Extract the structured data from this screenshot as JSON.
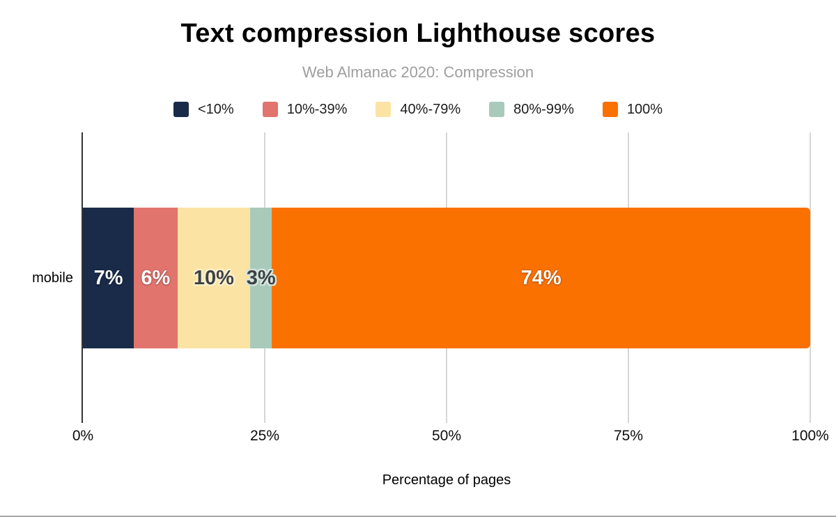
{
  "header": {
    "title": "Text compression Lighthouse scores",
    "subtitle": "Web Almanac 2020: Compression"
  },
  "chart_data": {
    "type": "bar",
    "orientation": "horizontal",
    "stacked": true,
    "title": "Text compression Lighthouse scores",
    "subtitle": "Web Almanac 2020: Compression",
    "categories": [
      "mobile"
    ],
    "series": [
      {
        "name": "<10%",
        "values": [
          7
        ],
        "data_label": "7%",
        "color": "#1a2b49",
        "label_theme": "light"
      },
      {
        "name": "10%-39%",
        "values": [
          6
        ],
        "data_label": "6%",
        "color": "#e1746d",
        "label_theme": "light"
      },
      {
        "name": "40%-79%",
        "values": [
          10
        ],
        "data_label": "10%",
        "color": "#fbe3a4",
        "label_theme": "dark",
        "halo": "#fdf0cd"
      },
      {
        "name": "80%-99%",
        "values": [
          3
        ],
        "data_label": "3%",
        "color": "#a9cabb",
        "label_theme": "dark",
        "halo": "#d6e6dd"
      },
      {
        "name": "100%",
        "values": [
          74
        ],
        "data_label": "74%",
        "color": "#fa7100",
        "label_theme": "light"
      }
    ],
    "xlabel": "Percentage of pages",
    "ylabel": "",
    "xlim": [
      0,
      100
    ],
    "x_ticks": [
      {
        "pos": 0,
        "label": "0%"
      },
      {
        "pos": 25,
        "label": "25%"
      },
      {
        "pos": 50,
        "label": "50%"
      },
      {
        "pos": 75,
        "label": "75%"
      },
      {
        "pos": 100,
        "label": "100%"
      }
    ],
    "x_gridlines": [
      25,
      50,
      75,
      100
    ],
    "grid": "vertical",
    "legend_position": "top",
    "axis_color": "#333333",
    "gridline_color": "#d6d6d6",
    "divider_color": "#a8a8a8"
  }
}
